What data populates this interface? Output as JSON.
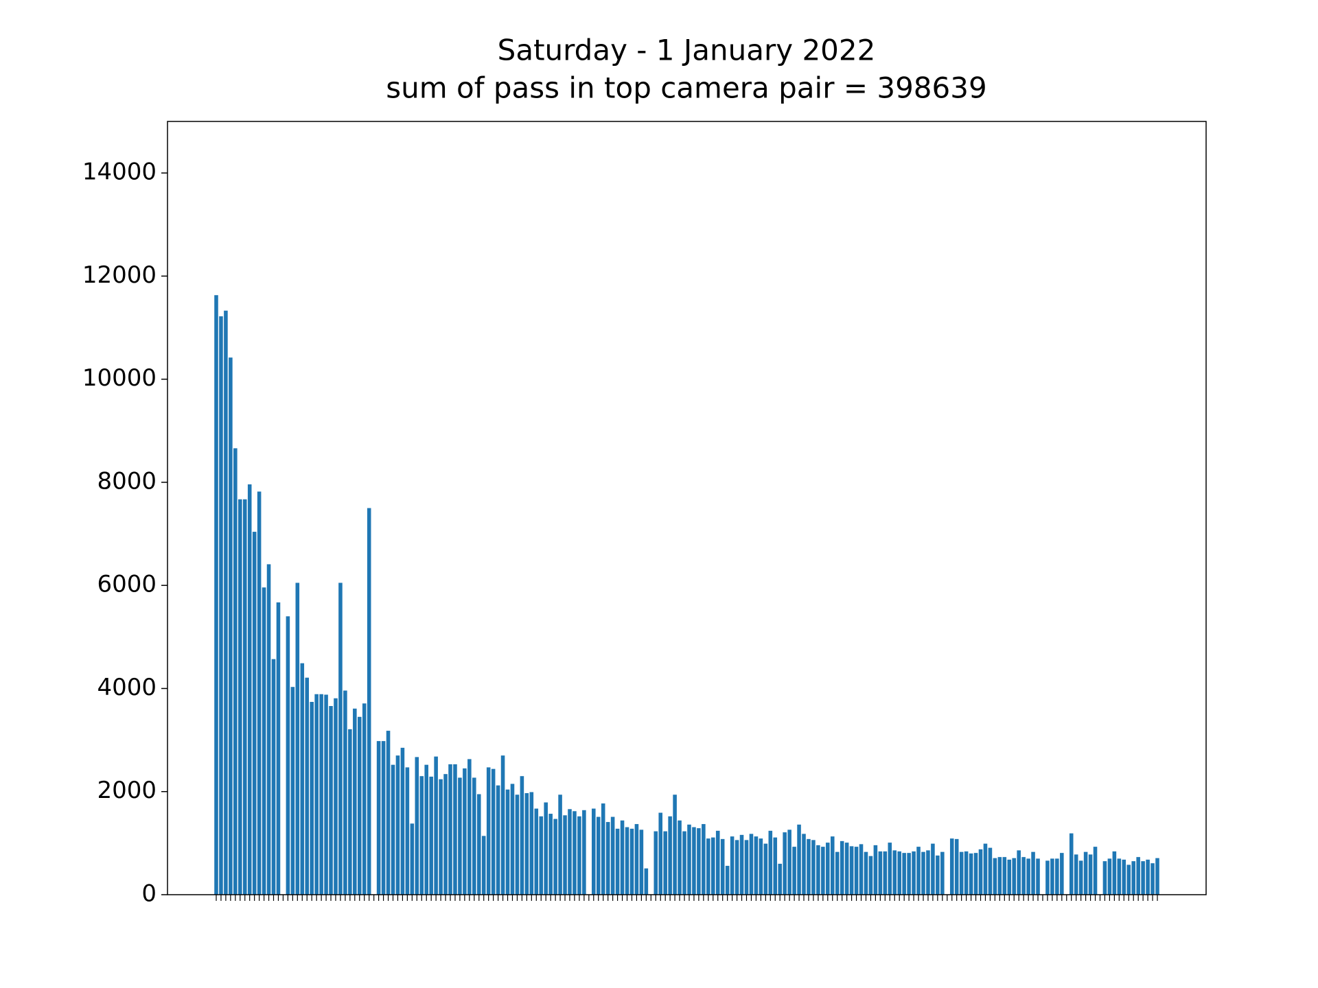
{
  "chart_data": {
    "type": "bar",
    "title": "Saturday - 1 January 2022",
    "subtitle": "sum of pass in top camera pair = 398639",
    "color": "#1f77b4",
    "values": [
      11630,
      11220,
      11330,
      10420,
      8660,
      7670,
      7670,
      7960,
      7040,
      7820,
      5960,
      6410,
      4570,
      5670,
      0,
      5400,
      4030,
      6050,
      4490,
      4210,
      3740,
      3890,
      3890,
      3880,
      3660,
      3810,
      6050,
      3960,
      3210,
      3610,
      3450,
      3710,
      7500,
      0,
      2980,
      2980,
      3180,
      2520,
      2700,
      2850,
      2470,
      1380,
      2670,
      2300,
      2520,
      2290,
      2680,
      2240,
      2340,
      2530,
      2530,
      2270,
      2450,
      2630,
      2270,
      1950,
      1140,
      2470,
      2440,
      2120,
      2700,
      2040,
      2150,
      1940,
      2300,
      1970,
      1990,
      1670,
      1520,
      1790,
      1570,
      1470,
      1940,
      1540,
      1660,
      1620,
      1520,
      1640,
      0,
      1670,
      1510,
      1770,
      1410,
      1510,
      1280,
      1440,
      1310,
      1280,
      1370,
      1260,
      510,
      0,
      1230,
      1590,
      1230,
      1520,
      1940,
      1440,
      1230,
      1360,
      1310,
      1290,
      1370,
      1090,
      1110,
      1240,
      1080,
      560,
      1130,
      1060,
      1160,
      1060,
      1180,
      1130,
      1090,
      990,
      1240,
      1110,
      600,
      1210,
      1260,
      930,
      1360,
      1180,
      1080,
      1060,
      960,
      930,
      1010,
      1130,
      830,
      1040,
      1010,
      940,
      930,
      980,
      830,
      750,
      960,
      840,
      840,
      1010,
      860,
      840,
      810,
      810,
      840,
      930,
      830,
      860,
      990,
      760,
      830,
      0,
      1090,
      1080,
      830,
      840,
      800,
      810,
      880,
      990,
      910,
      710,
      730,
      730,
      680,
      710,
      860,
      730,
      700,
      830,
      700,
      0,
      660,
      700,
      700,
      810,
      0,
      1190,
      780,
      660,
      830,
      780,
      930,
      0,
      650,
      700,
      840,
      700,
      680,
      580,
      650,
      730,
      650,
      680,
      610,
      710
    ],
    "ylim": [
      0,
      15000
    ],
    "yticks": [
      0,
      2000,
      4000,
      6000,
      8000,
      10000,
      12000,
      14000
    ],
    "grid": false
  }
}
